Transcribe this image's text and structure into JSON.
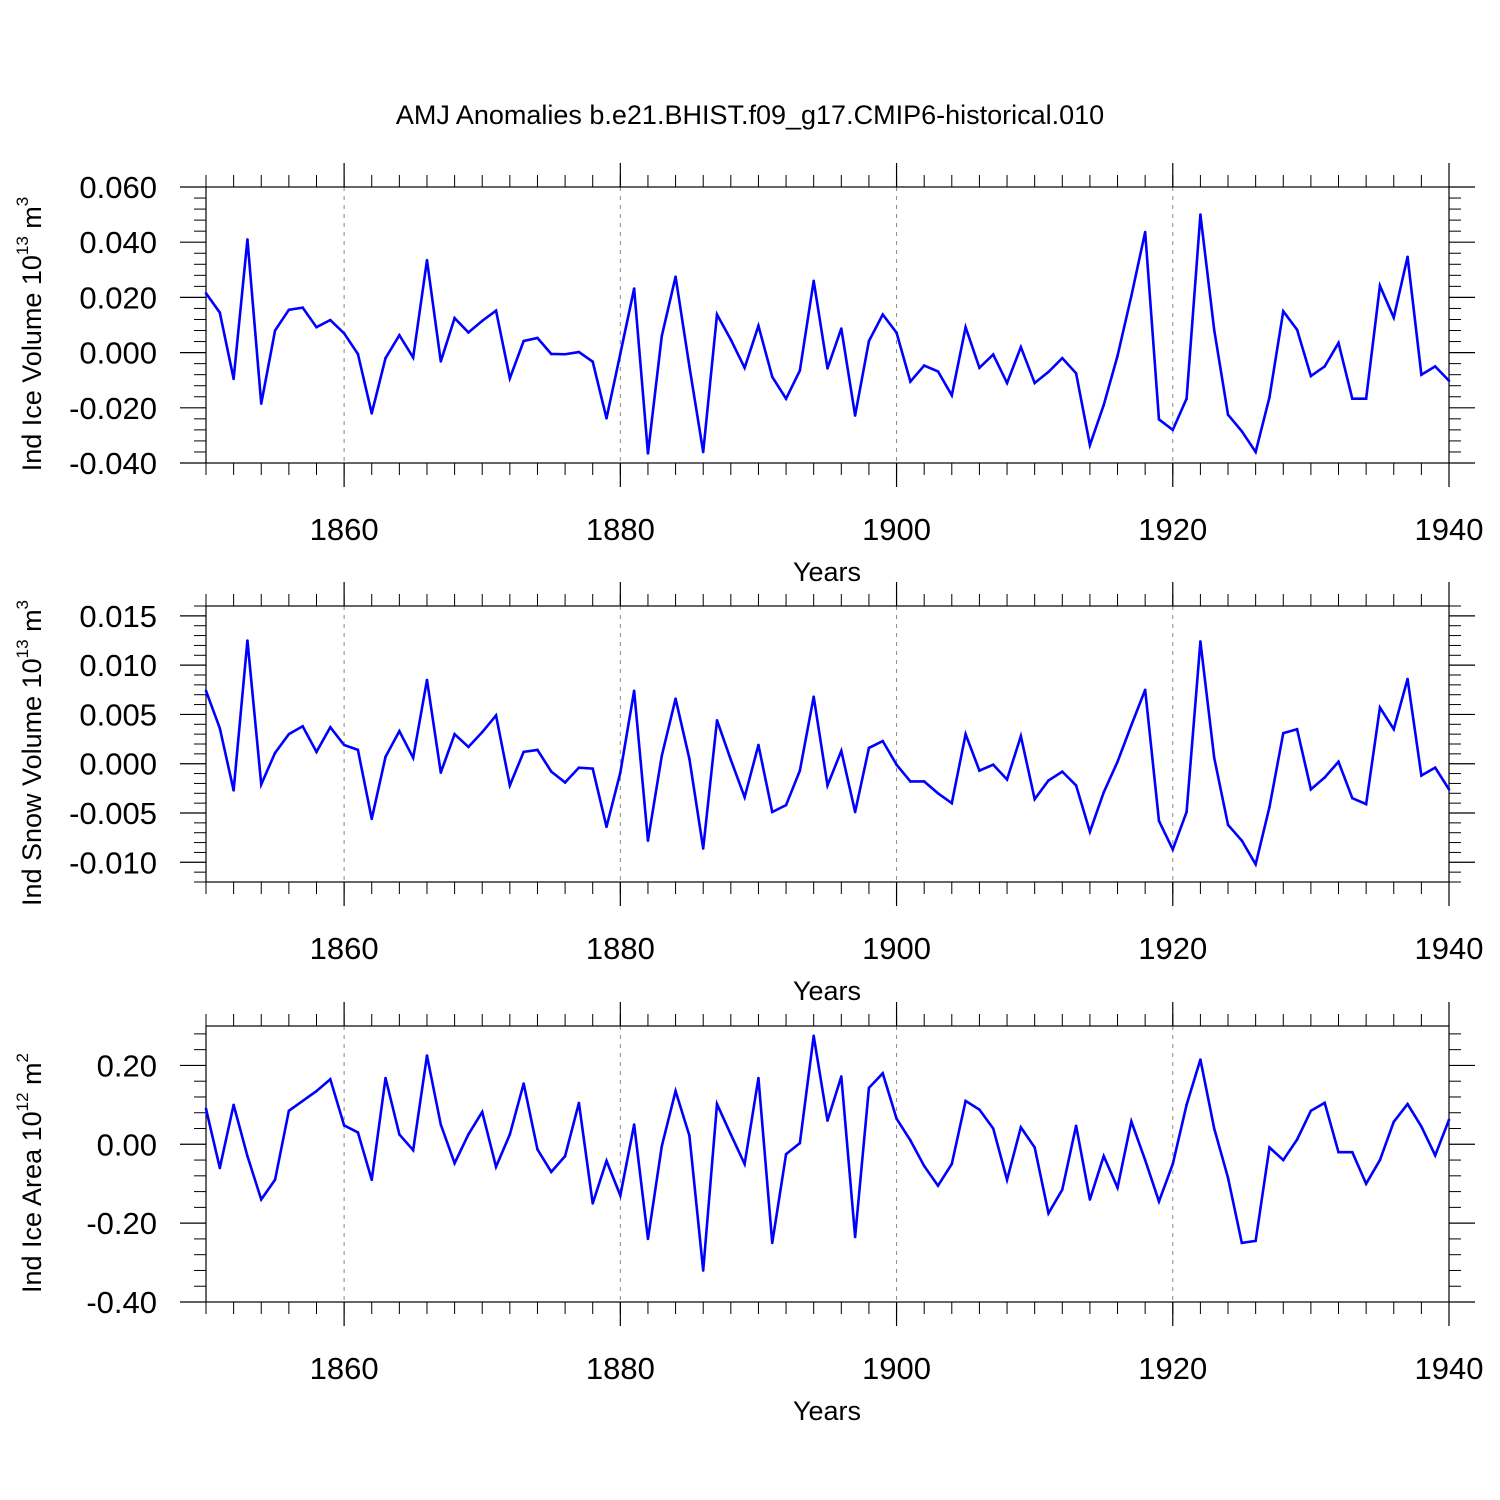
{
  "title": "AMJ Anomalies b.e21.BHIST.f09_g17.CMIP6-historical.010",
  "line_color": "#0000ff",
  "chart_data": [
    {
      "type": "line",
      "ylabel_main": "Ind Ice Volume 10",
      "ylabel_exp": "13",
      "ylabel_unit": " m",
      "ylabel_unit_exp": "3",
      "xlabel": "Years",
      "xlim": [
        1850,
        1940
      ],
      "ylim": [
        -0.04,
        0.06
      ],
      "yticks": [
        -0.04,
        -0.02,
        0.0,
        0.02,
        0.04,
        0.06
      ],
      "ytick_labels": [
        "-0.040",
        "-0.020",
        "0.000",
        "0.020",
        "0.040",
        "0.060"
      ],
      "xticks": [
        1860,
        1880,
        1900,
        1920,
        1940
      ],
      "xtick_labels": [
        "1860",
        "1880",
        "1900",
        "1920",
        "1940"
      ],
      "x_start": 1850,
      "values": [
        0.0215,
        0.0145,
        -0.0095,
        0.041,
        -0.0185,
        0.008,
        0.0155,
        0.0163,
        0.0092,
        0.0118,
        0.007,
        -0.0005,
        -0.022,
        -0.002,
        0.0063,
        -0.0018,
        0.0335,
        -0.0032,
        0.0125,
        0.0073,
        0.0115,
        0.0152,
        -0.0093,
        0.0042,
        0.0053,
        -0.0005,
        -0.0006,
        0.0002,
        -0.0033,
        -0.0238,
        -0.0004,
        0.0232,
        -0.0365,
        0.006,
        0.0275,
        -0.005,
        -0.036,
        0.0138,
        0.0047,
        -0.0055,
        0.0097,
        -0.0088,
        -0.0167,
        -0.0065,
        0.026,
        -0.0057,
        0.0087,
        -0.0228,
        0.0042,
        0.0138,
        0.0072,
        -0.0105,
        -0.0047,
        -0.0068,
        -0.0155,
        0.0092,
        -0.0055,
        -0.0007,
        -0.011,
        0.002,
        -0.011,
        -0.007,
        -0.002,
        -0.0075,
        -0.0335,
        -0.019,
        -0.0012,
        0.0205,
        0.0437,
        -0.0242,
        -0.028,
        -0.0167,
        0.05,
        0.0082,
        -0.0225,
        -0.0285,
        -0.036,
        -0.0162,
        0.015,
        0.0083,
        -0.0085,
        -0.005,
        0.0035,
        -0.0167,
        -0.0167,
        0.0242,
        0.0127,
        0.0347,
        -0.008,
        -0.005,
        -0.0102
      ]
    },
    {
      "type": "line",
      "ylabel_main": "Ind Snow Volume 10",
      "ylabel_exp": "13",
      "ylabel_unit": " m",
      "ylabel_unit_exp": "3",
      "xlabel": "Years",
      "xlim": [
        1850,
        1940
      ],
      "ylim": [
        -0.012,
        0.016
      ],
      "yticks": [
        -0.01,
        -0.005,
        0.0,
        0.005,
        0.01,
        0.015
      ],
      "ytick_labels": [
        "-0.010",
        "-0.005",
        "0.000",
        "0.005",
        "0.010",
        "0.015"
      ],
      "xticks": [
        1860,
        1880,
        1900,
        1920,
        1940
      ],
      "xtick_labels": [
        "1860",
        "1880",
        "1900",
        "1920",
        "1940"
      ],
      "x_start": 1850,
      "values": [
        0.0074,
        0.0036,
        -0.0027,
        0.0125,
        -0.0021,
        0.0011,
        0.003,
        0.0038,
        0.0012,
        0.0037,
        0.0019,
        0.0014,
        -0.0056,
        0.0007,
        0.0033,
        0.0006,
        0.0085,
        -0.0009,
        0.003,
        0.0017,
        0.0032,
        0.0049,
        -0.0022,
        0.0012,
        0.0014,
        -0.0008,
        -0.0019,
        -0.0004,
        -0.0005,
        -0.0064,
        -0.0009,
        0.0074,
        -0.0078,
        0.0008,
        0.0066,
        0.0005,
        -0.0086,
        0.0044,
        0.0004,
        -0.0034,
        0.0019,
        -0.0049,
        -0.0042,
        -0.0007,
        0.0068,
        -0.0022,
        0.0013,
        -0.0049,
        0.0016,
        0.0023,
        -0.0001,
        -0.0018,
        -0.0018,
        -0.003,
        -0.004,
        0.003,
        -0.0007,
        -0.0001,
        -0.0016,
        0.0028,
        -0.0036,
        -0.0017,
        -0.0008,
        -0.0022,
        -0.0069,
        -0.0029,
        0.0002,
        0.0039,
        0.0075,
        -0.0058,
        -0.0087,
        -0.0049,
        0.0124,
        0.0006,
        -0.0062,
        -0.0078,
        -0.0102,
        -0.0044,
        0.0031,
        0.0035,
        -0.0026,
        -0.0014,
        0.0002,
        -0.0035,
        -0.0041,
        0.0057,
        0.0035,
        0.0086,
        -0.0012,
        -0.0004,
        -0.0026
      ]
    },
    {
      "type": "line",
      "ylabel_main": "Ind Ice Area 10",
      "ylabel_exp": "12",
      "ylabel_unit": " m",
      "ylabel_unit_exp": "2",
      "xlabel": "Years",
      "xlim": [
        1850,
        1940
      ],
      "ylim": [
        -0.4,
        0.3
      ],
      "yticks": [
        -0.4,
        -0.2,
        0.0,
        0.2
      ],
      "ytick_labels": [
        "-0.40",
        "-0.20",
        "0.00",
        "0.20"
      ],
      "xticks": [
        1860,
        1880,
        1900,
        1920,
        1940
      ],
      "xtick_labels": [
        "1860",
        "1880",
        "1900",
        "1920",
        "1940"
      ],
      "x_start": 1850,
      "values": [
        0.09,
        -0.06,
        0.1,
        -0.03,
        -0.14,
        -0.09,
        0.085,
        0.11,
        0.135,
        0.165,
        0.048,
        0.03,
        -0.09,
        0.168,
        0.025,
        -0.015,
        0.225,
        0.05,
        -0.048,
        0.025,
        0.082,
        -0.057,
        0.025,
        0.154,
        -0.013,
        -0.07,
        -0.03,
        0.105,
        -0.15,
        -0.042,
        -0.13,
        0.05,
        -0.24,
        -0.005,
        0.135,
        0.022,
        -0.32,
        0.102,
        0.025,
        -0.05,
        0.168,
        -0.25,
        -0.025,
        0.003,
        0.275,
        0.06,
        0.172,
        -0.235,
        0.143,
        0.18,
        0.065,
        0.01,
        -0.055,
        -0.105,
        -0.05,
        0.11,
        0.088,
        0.04,
        -0.09,
        0.043,
        -0.008,
        -0.175,
        -0.115,
        0.047,
        -0.14,
        -0.03,
        -0.11,
        0.058,
        -0.04,
        -0.145,
        -0.05,
        0.1,
        0.215,
        0.04,
        -0.085,
        -0.25,
        -0.245,
        -0.008,
        -0.04,
        0.012,
        0.085,
        0.105,
        -0.02,
        -0.02,
        -0.1,
        -0.04,
        0.057,
        0.102,
        0.045,
        -0.028,
        0.062
      ]
    }
  ]
}
